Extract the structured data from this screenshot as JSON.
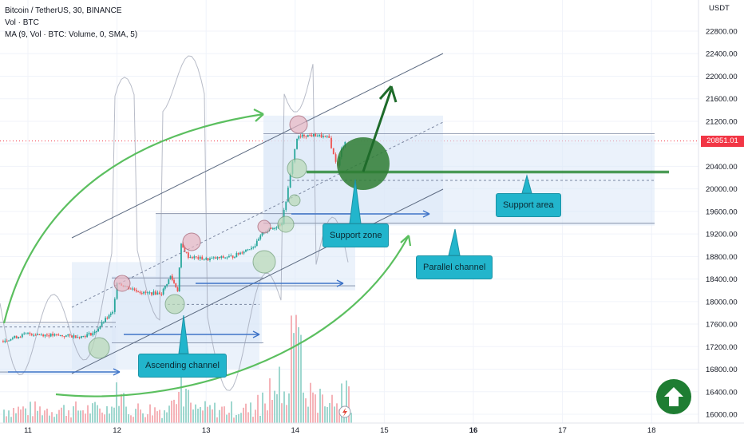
{
  "legend": {
    "title": "Bitcoin / TetherUS, 30, BINANCE",
    "volume": "Vol · BTC",
    "ma": "MA (9, Vol · BTC: Volume, 0, SMA, 5)"
  },
  "axis": {
    "currency": "USDT",
    "current_price": "20851.01"
  },
  "annotations": {
    "ascending_channel": "Ascending channel",
    "support_zone": "Support zone",
    "parallel_channel": "Parallel channel",
    "support_area": "Support area"
  },
  "colors": {
    "channel_fill": "#dbe7f8",
    "green_arrow": "#5bbf5f",
    "support_line": "#2e8b3a",
    "callout": "#22b5cc",
    "price_tag": "#f23645",
    "up_button": "#1e7d32"
  },
  "icons": {
    "lightning": "lightning-icon",
    "up_arrow": "up-arrow-icon"
  },
  "chart_data": {
    "type": "candlestick",
    "y_ticks": [
      16000,
      16400,
      16800,
      17200,
      17600,
      18000,
      18400,
      18800,
      19200,
      19600,
      20000,
      20400,
      20800,
      21200,
      21600,
      22000,
      22400,
      22800
    ],
    "y_tick_labels": [
      "16000.00",
      "16400.00",
      "16800.00",
      "17200.00",
      "17600.00",
      "18000.00",
      "18400.00",
      "18800.00",
      "19200.00",
      "19600.00",
      "20000.00",
      "20400.00",
      "20800.00",
      "21200.00",
      "21600.00",
      "22000.00",
      "22400.00",
      "22800.00"
    ],
    "ylim": [
      15950,
      23200
    ],
    "x_ticks": [
      11,
      12,
      13,
      14,
      15,
      16,
      17,
      18
    ],
    "x_tick_labels": [
      "11",
      "12",
      "13",
      "14",
      "15",
      "16",
      "17",
      "18"
    ],
    "x_bold_ticks": [
      16
    ],
    "xlim": [
      10.7,
      18.5
    ],
    "price_path": [
      [
        10.7,
        17300
      ],
      [
        11.0,
        17430
      ],
      [
        11.3,
        17400
      ],
      [
        11.6,
        17380
      ],
      [
        11.75,
        17450
      ],
      [
        11.85,
        17650
      ],
      [
        11.95,
        17800
      ],
      [
        12.0,
        18350
      ],
      [
        12.05,
        18300
      ],
      [
        12.3,
        18150
      ],
      [
        12.5,
        18150
      ],
      [
        12.6,
        18450
      ],
      [
        12.68,
        18200
      ],
      [
        12.72,
        19000
      ],
      [
        12.8,
        18800
      ],
      [
        13.0,
        18750
      ],
      [
        13.3,
        18800
      ],
      [
        13.55,
        19000
      ],
      [
        13.65,
        19250
      ],
      [
        13.75,
        19300
      ],
      [
        13.85,
        19400
      ],
      [
        13.92,
        20000
      ],
      [
        13.97,
        20500
      ],
      [
        14.02,
        20900
      ],
      [
        14.1,
        20950
      ],
      [
        14.25,
        20950
      ],
      [
        14.38,
        20900
      ],
      [
        14.43,
        20600
      ],
      [
        14.48,
        20400
      ],
      [
        14.52,
        20700
      ],
      [
        14.56,
        20851
      ]
    ],
    "current_price": 20851.01,
    "support_level": 20300,
    "volume_peak_day": 14.0
  }
}
